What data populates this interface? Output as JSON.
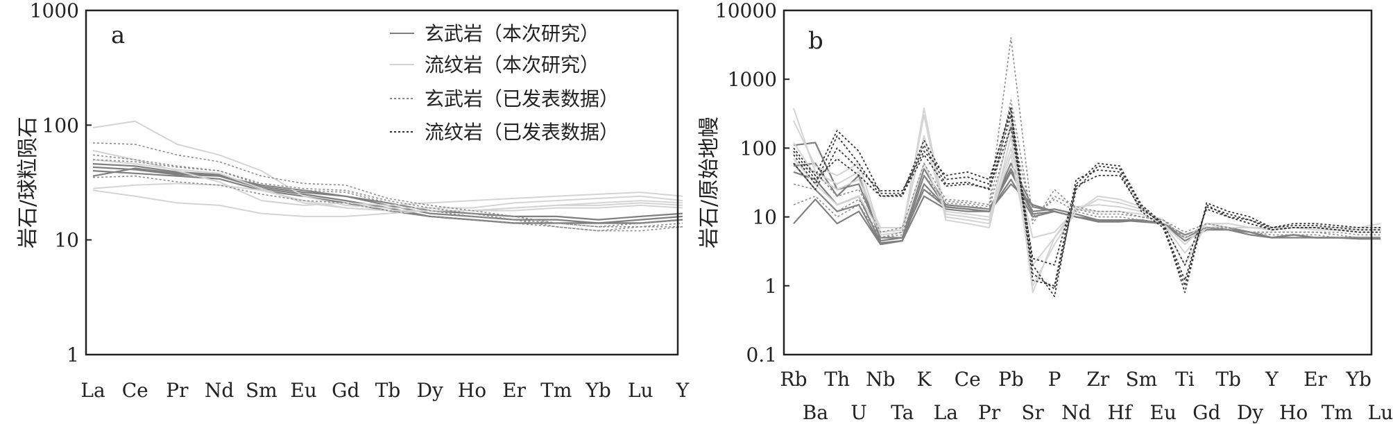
{
  "colors": {
    "basalt_this_study": "#7f7f7f",
    "rhyolite_this_study": "#d4d4d4",
    "basalt_published": "#8c8c8c",
    "rhyolite_published": "#333333",
    "axis": "#222222"
  },
  "chart_data": [
    {
      "type": "line",
      "panel_label": "a",
      "title": "",
      "xlabel": "",
      "ylabel": "岩石/球粒陨石",
      "y_scale": "log",
      "ylim": [
        1,
        1000
      ],
      "y_ticks": [
        "1",
        "10",
        "100",
        "1000"
      ],
      "categories": [
        "La",
        "Ce",
        "Pr",
        "Nd",
        "Sm",
        "Eu",
        "Gd",
        "Tb",
        "Dy",
        "Ho",
        "Er",
        "Tm",
        "Yb",
        "Lu",
        "Y"
      ],
      "legend_position": "top-right",
      "legend": [
        {
          "label": "玄武岩（本次研究）",
          "style": "solid",
          "group": "basalt_this_study"
        },
        {
          "label": "流纹岩（本次研究）",
          "style": "solid",
          "group": "rhyolite_this_study"
        },
        {
          "label": "玄武岩（已发表数据）",
          "style": "dotted",
          "group": "basalt_published"
        },
        {
          "label": "流纹岩（已发表数据）",
          "style": "dotted",
          "group": "rhyolite_published"
        }
      ],
      "series": [
        {
          "group": "basalt_this_study",
          "values": [
            46,
            44,
            39,
            37,
            29,
            26,
            24,
            20,
            17,
            16,
            15,
            15,
            14,
            15,
            16
          ]
        },
        {
          "group": "basalt_this_study",
          "values": [
            43,
            41,
            37,
            36,
            28,
            25,
            22,
            19,
            16,
            15,
            14,
            14,
            14,
            14,
            15
          ]
        },
        {
          "group": "basalt_this_study",
          "values": [
            40,
            38,
            36,
            34,
            27,
            24,
            21,
            18,
            16,
            15,
            14,
            14,
            14,
            14,
            15
          ]
        },
        {
          "group": "basalt_this_study",
          "values": [
            36,
            42,
            38,
            36,
            30,
            27,
            24,
            21,
            18,
            17,
            16,
            16,
            15,
            16,
            17
          ]
        },
        {
          "group": "rhyolite_this_study",
          "values": [
            95,
            108,
            68,
            55,
            40,
            24,
            20,
            19,
            19,
            19,
            21,
            22,
            23,
            24,
            22
          ]
        },
        {
          "group": "rhyolite_this_study",
          "values": [
            60,
            50,
            40,
            32,
            22,
            20,
            21,
            20,
            21,
            22,
            23,
            24,
            25,
            26,
            24
          ]
        },
        {
          "group": "rhyolite_this_study",
          "values": [
            27,
            24,
            21,
            20,
            17,
            16,
            16,
            17,
            18,
            18,
            18,
            19,
            19,
            20,
            19
          ]
        },
        {
          "group": "rhyolite_this_study",
          "values": [
            28,
            30,
            31,
            30,
            27,
            22,
            19,
            18,
            18,
            18,
            19,
            20,
            21,
            22,
            21
          ]
        },
        {
          "group": "rhyolite_this_study",
          "values": [
            50,
            46,
            41,
            38,
            28,
            21,
            19,
            18,
            18,
            18,
            19,
            20,
            20,
            21,
            20
          ]
        },
        {
          "group": "basalt_published",
          "values": [
            70,
            68,
            55,
            48,
            36,
            31,
            30,
            23,
            20,
            18,
            16,
            14,
            13,
            14,
            15
          ]
        },
        {
          "group": "basalt_published",
          "values": [
            50,
            48,
            43,
            40,
            30,
            27,
            26,
            21,
            18,
            16,
            15,
            13,
            12,
            13,
            13
          ]
        },
        {
          "group": "basalt_published",
          "values": [
            35,
            36,
            32,
            30,
            25,
            22,
            21,
            18,
            16,
            15,
            14,
            13,
            12,
            12,
            13
          ]
        },
        {
          "group": "basalt_published",
          "values": [
            55,
            50,
            44,
            40,
            31,
            28,
            27,
            22,
            19,
            17,
            15,
            14,
            13,
            13,
            14
          ]
        }
      ]
    },
    {
      "type": "line",
      "panel_label": "b",
      "title": "",
      "xlabel": "",
      "ylabel": "岩石/原始地幔",
      "y_scale": "log",
      "ylim": [
        0.1,
        10000
      ],
      "y_ticks": [
        "0.1",
        "1",
        "10",
        "100",
        "1000",
        "10000"
      ],
      "categories": [
        "Rb",
        "Ba",
        "Th",
        "U",
        "Nb",
        "Ta",
        "K",
        "La",
        "Ce",
        "Pr",
        "Pb",
        "Sr",
        "P",
        "Nd",
        "Zr",
        "Hf",
        "Sm",
        "Eu",
        "Ti",
        "Gd",
        "Tb",
        "Dy",
        "Y",
        "Ho",
        "Er",
        "Tm",
        "Yb",
        "Lu"
      ],
      "series": [
        {
          "group": "basalt_this_study",
          "values": [
            55,
            60,
            20,
            40,
            4.5,
            5,
            50,
            15,
            14,
            13,
            50,
            12,
            13,
            11,
            9,
            9,
            9,
            8,
            5,
            7,
            7,
            6,
            5,
            5.5,
            5,
            5,
            5,
            5
          ]
        },
        {
          "group": "basalt_this_study",
          "values": [
            45,
            35,
            15,
            20,
            4.2,
            4.5,
            40,
            14,
            13,
            12,
            35,
            10,
            12,
            10,
            8.5,
            8.5,
            9,
            8,
            5.5,
            7,
            6.5,
            6,
            5,
            5.5,
            5,
            5,
            4.8,
            4.8
          ]
        },
        {
          "group": "basalt_this_study",
          "values": [
            60,
            25,
            12,
            15,
            4,
            4.5,
            30,
            14,
            13,
            12,
            60,
            14,
            12,
            10,
            9,
            9,
            9,
            8,
            5,
            7,
            7,
            6,
            5,
            5.5,
            5,
            5,
            5,
            5
          ]
        },
        {
          "group": "basalt_this_study",
          "values": [
            8,
            18,
            8,
            12,
            4,
            4.5,
            20,
            13,
            12,
            12,
            30,
            15,
            12,
            10,
            9,
            9,
            9,
            8,
            4.5,
            6.5,
            6.5,
            5.5,
            5,
            5,
            5,
            5,
            4.8,
            4.8
          ]
        },
        {
          "group": "basalt_this_study",
          "values": [
            110,
            120,
            25,
            30,
            5,
            5,
            25,
            14,
            13,
            12,
            45,
            11,
            12,
            10,
            9,
            9,
            8.5,
            8,
            5,
            7,
            6.5,
            6,
            5,
            5.5,
            5,
            5,
            5,
            5
          ]
        },
        {
          "group": "rhyolite_this_study",
          "values": [
            380,
            45,
            30,
            45,
            5.5,
            6,
            380,
            10,
            9,
            8,
            250,
            0.8,
            5,
            12,
            20,
            18,
            14,
            8,
            2,
            8,
            8,
            7,
            7,
            7,
            7,
            7,
            7,
            8
          ]
        },
        {
          "group": "rhyolite_this_study",
          "values": [
            250,
            55,
            40,
            60,
            6,
            6.5,
            300,
            9,
            8,
            7,
            150,
            1,
            4,
            12,
            18,
            16,
            13,
            8,
            3,
            7,
            7,
            7,
            7,
            7,
            7,
            7,
            7,
            7
          ]
        },
        {
          "group": "rhyolite_this_study",
          "values": [
            120,
            40,
            25,
            35,
            7,
            7,
            150,
            11,
            10,
            9,
            80,
            2,
            5,
            14,
            15,
            14,
            12,
            9,
            5,
            8,
            8,
            7,
            7,
            7,
            7,
            7,
            7,
            7
          ]
        },
        {
          "group": "rhyolite_this_study",
          "values": [
            70,
            30,
            15,
            20,
            6,
            6.5,
            60,
            12,
            11,
            10,
            100,
            5,
            6,
            13,
            12,
            12,
            11,
            8,
            4,
            8,
            7,
            7,
            6.5,
            7,
            6.5,
            6.5,
            6.5,
            6.5
          ]
        },
        {
          "group": "basalt_published",
          "values": [
            60,
            45,
            20,
            25,
            6,
            7,
            60,
            18,
            17,
            15,
            4000,
            9,
            20,
            14,
            12,
            12,
            10,
            9,
            6,
            8,
            7,
            6,
            6,
            6,
            6,
            6,
            5.5,
            5.5
          ]
        },
        {
          "group": "basalt_published",
          "values": [
            30,
            25,
            12,
            18,
            5,
            6,
            40,
            17,
            16,
            14,
            500,
            8,
            25,
            13,
            11,
            11,
            10,
            9,
            5,
            7,
            7,
            6,
            6,
            6,
            6,
            5.5,
            5,
            5
          ]
        },
        {
          "group": "basalt_published",
          "values": [
            15,
            20,
            10,
            15,
            5,
            5.5,
            25,
            16,
            15,
            13,
            200,
            10,
            18,
            12,
            10,
            10,
            9,
            8,
            5.5,
            7,
            6.5,
            6,
            5.5,
            5.5,
            5.5,
            5,
            5,
            5
          ]
        },
        {
          "group": "rhyolite_published",
          "values": [
            100,
            40,
            180,
            90,
            22,
            22,
            130,
            35,
            38,
            30,
            400,
            2,
            0.7,
            30,
            60,
            55,
            15,
            8,
            0.8,
            16,
            12,
            10,
            7,
            8,
            8,
            7.5,
            7,
            7
          ]
        },
        {
          "group": "rhyolite_published",
          "values": [
            80,
            30,
            150,
            60,
            20,
            20,
            110,
            30,
            32,
            25,
            300,
            1.5,
            0.9,
            25,
            55,
            50,
            14,
            7.5,
            1.2,
            14,
            11,
            9,
            7,
            7.5,
            7.5,
            7,
            6.5,
            6.5
          ]
        },
        {
          "group": "rhyolite_published",
          "values": [
            60,
            25,
            100,
            50,
            24,
            24,
            90,
            40,
            45,
            35,
            350,
            1.2,
            1,
            35,
            48,
            45,
            12,
            7,
            1,
            15,
            10,
            9,
            6.5,
            7,
            7,
            6.5,
            6,
            6
          ]
        },
        {
          "group": "rhyolite_published",
          "values": [
            90,
            35,
            70,
            40,
            20,
            21,
            80,
            28,
            30,
            26,
            200,
            2.5,
            2,
            28,
            40,
            40,
            13,
            8,
            2,
            13,
            10,
            8,
            6.5,
            7,
            7,
            6.5,
            6,
            6
          ]
        }
      ]
    }
  ]
}
